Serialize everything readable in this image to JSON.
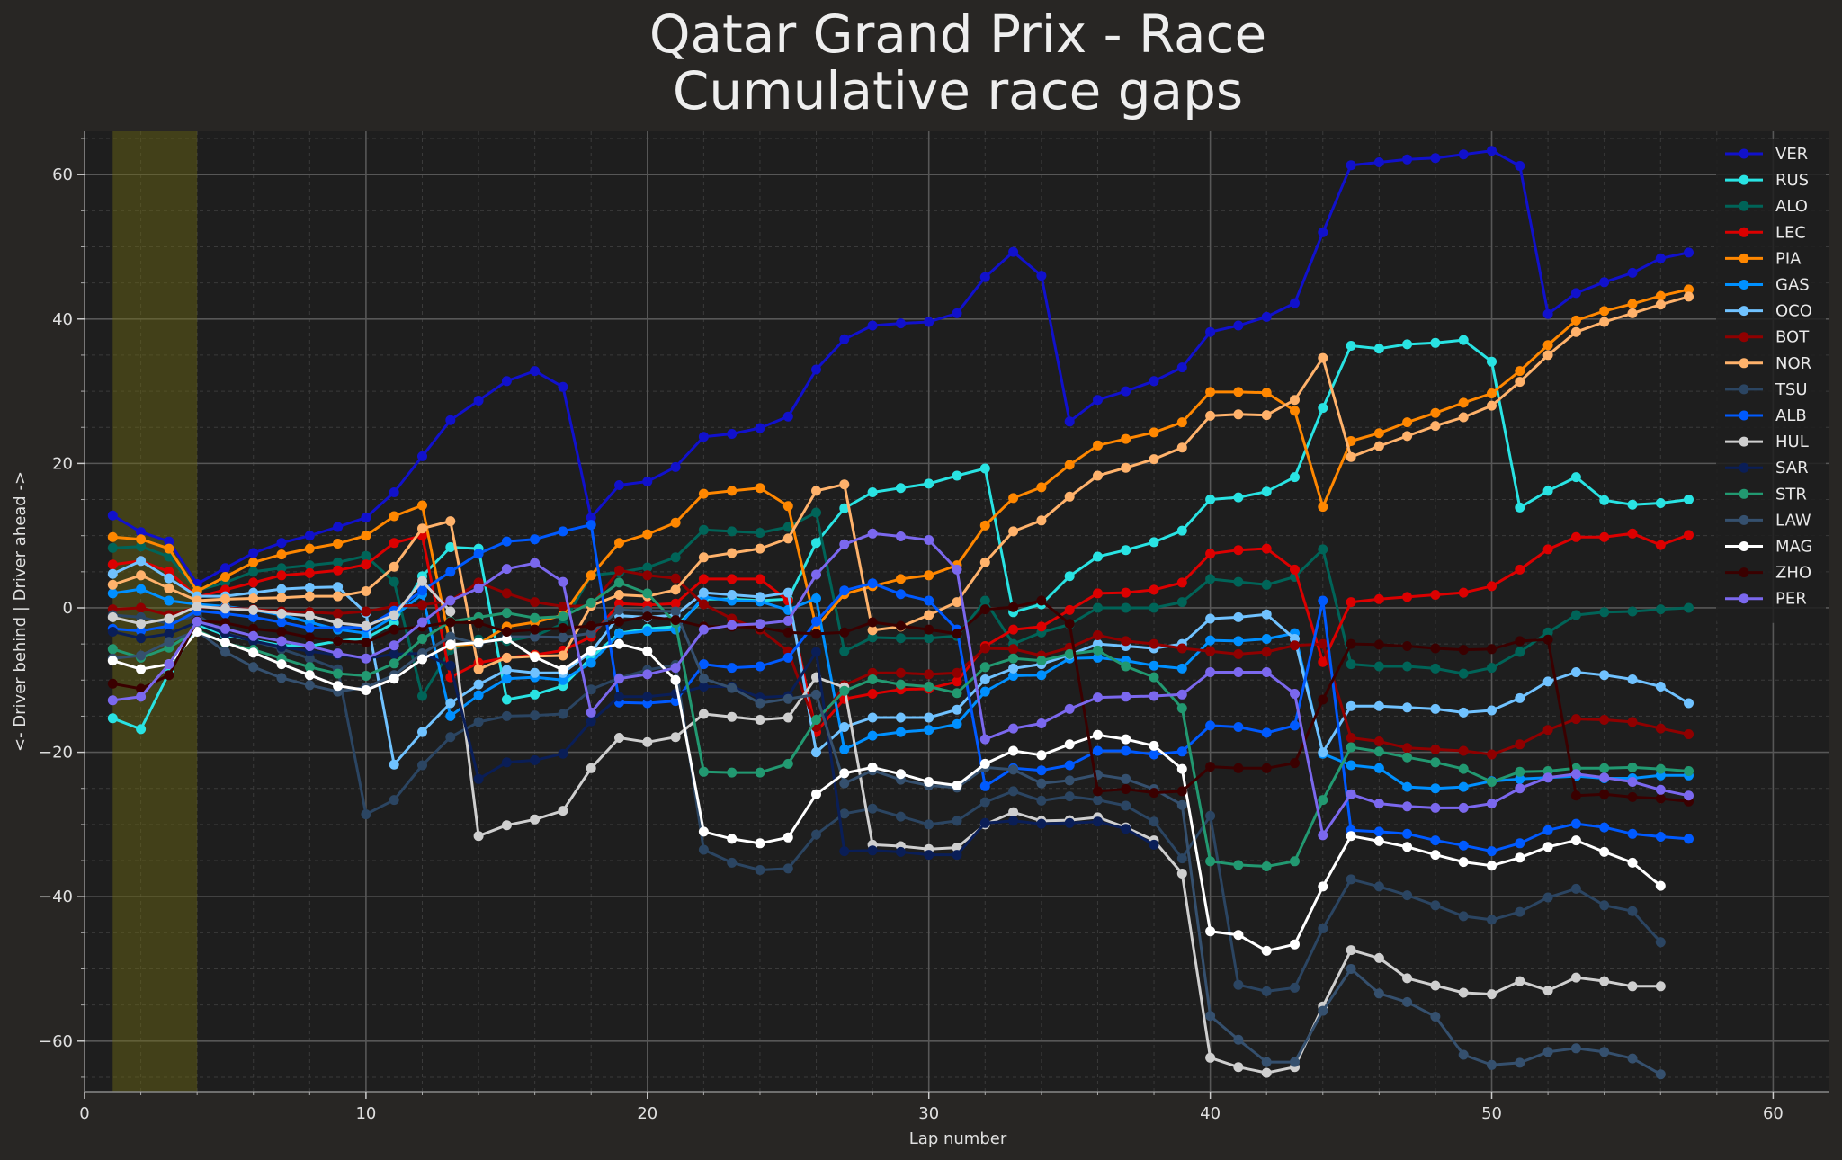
{
  "chart_data": {
    "type": "line",
    "title": "Qatar Grand Prix - Race",
    "subtitle": "Cumulative race gaps",
    "xlabel": "Lap number",
    "ylabel": "<- Driver behind | Driver ahead ->",
    "xlim": [
      0,
      62
    ],
    "ylim": [
      -67,
      66
    ],
    "x_ticks": [
      0,
      10,
      20,
      30,
      40,
      50,
      60
    ],
    "y_ticks": [
      -60,
      -40,
      -20,
      0,
      20,
      40,
      60
    ],
    "x_tick_labels": [
      "0",
      "10",
      "20",
      "30",
      "40",
      "50",
      "60"
    ],
    "y_tick_labels": [
      "−60",
      "−40",
      "−20",
      "0",
      "20",
      "40",
      "60"
    ],
    "grid": true,
    "legend_position": "top-right",
    "safety_car_laps": [
      1,
      4
    ],
    "series": [
      {
        "name": "VER",
        "color": "#1111cc",
        "x_start": 1,
        "values": [
          12.8,
          10.5,
          9.2,
          3.3,
          5.5,
          7.6,
          9.0,
          10.0,
          11.2,
          12.5,
          16.0,
          21.0,
          26.0,
          28.7,
          31.4,
          32.8,
          30.6,
          12.5,
          17.0,
          17.5,
          19.5,
          23.7,
          24.1,
          24.9,
          26.5,
          33.0,
          37.2,
          39.1,
          39.4,
          39.6,
          40.8,
          45.8,
          49.3,
          46.0,
          25.8,
          28.8,
          30.0,
          31.4,
          33.3,
          38.2,
          39.1,
          40.3,
          42.2,
          52.0,
          61.3,
          61.7,
          62.1,
          62.3,
          62.8,
          63.3,
          61.2,
          40.7,
          43.6,
          45.1,
          46.4,
          48.4,
          49.2
        ]
      },
      {
        "name": "RUS",
        "color": "#29e3e3",
        "x_start": 1,
        "values": [
          -15.3,
          -16.8,
          -9.0,
          -2.3,
          -3.8,
          -4.5,
          -5.2,
          -5.3,
          -4.6,
          -4.2,
          -2.1,
          4.4,
          8.4,
          8.2,
          -12.7,
          -12.0,
          -10.8,
          -6.9,
          -3.5,
          -2.9,
          -2.6,
          1.2,
          1.2,
          1.0,
          1.2,
          9.0,
          13.8,
          16.0,
          16.6,
          17.2,
          18.3,
          19.3,
          -0.6,
          0.5,
          4.4,
          7.1,
          8.0,
          9.1,
          10.7,
          15.0,
          15.3,
          16.1,
          18.1,
          27.7,
          36.3,
          35.9,
          36.5,
          36.7,
          37.1,
          34.1,
          13.9,
          16.2,
          18.1,
          14.9,
          14.3,
          14.5,
          15.0
        ]
      },
      {
        "name": "ALO",
        "color": "#006458",
        "x_start": 1,
        "values": [
          8.3,
          8.5,
          7.1,
          2.4,
          3.5,
          5.0,
          5.5,
          5.9,
          6.3,
          7.2,
          3.6,
          -12.2,
          -5.8,
          -4.4,
          -4.6,
          -3.9,
          -2.2,
          4.5,
          4.9,
          5.6,
          7.0,
          10.8,
          10.6,
          10.4,
          11.2,
          13.2,
          -6.0,
          -4.1,
          -4.2,
          -4.2,
          -3.9,
          1.0,
          -5.0,
          -3.4,
          -2.3,
          0.0,
          0.0,
          0.0,
          0.8,
          4.0,
          3.6,
          3.2,
          4.3,
          8.1,
          -7.8,
          -8.1,
          -8.1,
          -8.4,
          -9.1,
          -8.3,
          -6.1,
          -3.4,
          -1.0,
          -0.6,
          -0.5,
          -0.2,
          0.0
        ]
      },
      {
        "name": "LEC",
        "color": "#dc0000",
        "x_start": 1,
        "values": [
          6.0,
          6.5,
          5.0,
          1.5,
          2.5,
          3.5,
          4.5,
          4.8,
          5.2,
          6.0,
          9.0,
          10.0,
          -9.6,
          -7.6,
          -6.9,
          -6.5,
          -5.9,
          -4.0,
          0.6,
          0.4,
          0.6,
          4.0,
          4.0,
          4.0,
          1.0,
          -17.2,
          -12.6,
          -11.9,
          -11.3,
          -11.2,
          -10.2,
          -5.3,
          -3.0,
          -2.6,
          -0.3,
          2.0,
          2.1,
          2.5,
          3.5,
          7.5,
          8.0,
          8.2,
          5.3,
          -7.5,
          0.8,
          1.2,
          1.5,
          1.8,
          2.1,
          3.0,
          5.3,
          8.1,
          9.8,
          9.8,
          10.3,
          8.7,
          10.1
        ]
      },
      {
        "name": "PIA",
        "color": "#ff8700",
        "x_start": 1,
        "values": [
          9.8,
          9.5,
          8.2,
          2.3,
          4.3,
          6.3,
          7.4,
          8.2,
          8.9,
          10.0,
          12.7,
          14.2,
          -5.2,
          -5.0,
          -2.6,
          -2.0,
          -1.0,
          4.5,
          9.0,
          10.2,
          11.8,
          15.8,
          16.2,
          16.6,
          14.1,
          -2.7,
          1.9,
          3.0,
          4.0,
          4.5,
          5.9,
          11.4,
          15.2,
          16.7,
          19.8,
          22.5,
          23.4,
          24.3,
          25.7,
          29.9,
          29.9,
          29.8,
          27.3,
          14.0,
          23.1,
          24.2,
          25.7,
          27.0,
          28.4,
          29.7,
          32.8,
          36.4,
          39.8,
          41.1,
          42.1,
          43.2,
          44.1
        ]
      },
      {
        "name": "GAS",
        "color": "#0090ff",
        "x_start": 1,
        "values": [
          2.0,
          2.6,
          1.0,
          0.5,
          0.2,
          -0.3,
          -1.0,
          -2.0,
          -3.0,
          -3.5,
          -1.2,
          1.9,
          -15.0,
          -12.1,
          -9.8,
          -9.6,
          -10.0,
          -7.6,
          -3.6,
          -3.2,
          -3.0,
          1.5,
          1.0,
          0.9,
          -0.3,
          1.3,
          -19.6,
          -17.7,
          -17.2,
          -16.9,
          -16.1,
          -11.6,
          -9.4,
          -9.3,
          -7.0,
          -6.9,
          -7.3,
          -8.0,
          -8.4,
          -4.5,
          -4.6,
          -4.3,
          -3.5,
          -20.2,
          -21.8,
          -22.2,
          -24.8,
          -25.0,
          -24.8,
          -24.0,
          -23.7,
          -23.5,
          -23.3,
          -23.6,
          -23.6,
          -23.2,
          -23.2
        ]
      },
      {
        "name": "OCO",
        "color": "#70c2ff",
        "x_start": 1,
        "values": [
          4.7,
          6.5,
          4.1,
          1.6,
          1.6,
          2.1,
          2.6,
          2.8,
          2.9,
          -0.7,
          -21.7,
          -17.2,
          -13.2,
          -10.6,
          -8.6,
          -9.0,
          -9.0,
          -6.1,
          -1.1,
          -1.3,
          -1.0,
          2.1,
          1.8,
          1.5,
          2.1,
          -20.0,
          -16.5,
          -15.2,
          -15.2,
          -15.2,
          -14.1,
          -9.9,
          -8.4,
          -7.8,
          -6.5,
          -5.0,
          -5.3,
          -5.6,
          -5.0,
          -1.5,
          -1.3,
          -0.9,
          -4.3,
          -20.0,
          -13.6,
          -13.6,
          -13.8,
          -14.0,
          -14.5,
          -14.2,
          -12.5,
          -10.2,
          -8.9,
          -9.3,
          -9.9,
          -10.9,
          -13.2
        ]
      },
      {
        "name": "BOT",
        "color": "#900000",
        "x_start": 1,
        "values": [
          -0.2,
          0.0,
          -1.0,
          0.1,
          0.0,
          -0.2,
          -0.5,
          -0.6,
          -0.8,
          -0.5,
          0.2,
          0.4,
          1.0,
          3.5,
          2.0,
          0.8,
          0.2,
          0.3,
          5.2,
          4.5,
          4.1,
          0.5,
          -1.5,
          -3.0,
          -6.0,
          -16.5,
          -10.7,
          -9.0,
          -9.0,
          -9.2,
          -9.0,
          -5.6,
          -5.7,
          -6.6,
          -5.5,
          -3.8,
          -4.6,
          -5.0,
          -5.6,
          -6.0,
          -6.4,
          -6.1,
          -5.2,
          -5.0,
          -18.0,
          -18.5,
          -19.4,
          -19.6,
          -19.8,
          -20.3,
          -18.9,
          -16.9,
          -15.4,
          -15.5,
          -15.8,
          -16.7,
          -17.5
        ]
      },
      {
        "name": "NOR",
        "color": "#ffb26b",
        "x_start": 1,
        "values": [
          3.2,
          4.5,
          2.7,
          1.0,
          1.2,
          1.3,
          1.4,
          1.6,
          1.6,
          2.3,
          5.7,
          11.0,
          12.0,
          -8.5,
          -6.9,
          -6.7,
          -6.6,
          0.3,
          1.8,
          1.6,
          2.5,
          7.0,
          7.6,
          8.2,
          9.6,
          16.2,
          17.1,
          -3.1,
          -2.6,
          -1.0,
          0.8,
          6.3,
          10.6,
          12.1,
          15.4,
          18.3,
          19.4,
          20.6,
          22.2,
          26.6,
          26.8,
          26.7,
          28.8,
          34.6,
          20.9,
          22.4,
          23.8,
          25.2,
          26.4,
          28.0,
          31.3,
          35.0,
          38.2,
          39.6,
          40.8,
          42.0,
          43.1
        ]
      },
      {
        "name": "TSU",
        "color": "#2b4562",
        "x_start": 1,
        "values": [
          -1.0,
          -1.3,
          -2.2,
          -1.0,
          -3.5,
          -4.6,
          -5.7,
          -7.0,
          -8.5,
          -28.6,
          -26.6,
          -21.8,
          -17.9,
          -15.8,
          -15.0,
          -14.9,
          -14.7,
          -11.3,
          -9.7,
          -8.6,
          -7.9,
          -33.5,
          -35.3,
          -36.3,
          -36.1,
          -31.4,
          -28.5,
          -27.8,
          -28.9,
          -30.0,
          -29.5,
          -26.9,
          -25.4,
          -26.7,
          -26.1,
          -26.6,
          -27.4,
          -29.6,
          -34.7,
          -28.8,
          -52.2,
          -53.1,
          -52.6,
          -44.4,
          -37.6,
          -38.6,
          -39.8,
          -41.2,
          -42.7,
          -43.2,
          -42.1,
          -40.1,
          -38.9,
          -41.2,
          -42.0,
          -46.3
        ]
      },
      {
        "name": "ALB",
        "color": "#005aff",
        "x_start": 1,
        "values": [
          -2.9,
          -3.2,
          -2.5,
          -0.4,
          -0.8,
          -1.3,
          -2.0,
          -2.8,
          -2.7,
          -2.7,
          -0.4,
          2.4,
          5.0,
          7.5,
          9.2,
          9.5,
          10.6,
          11.5,
          -13.1,
          -13.2,
          -12.9,
          -7.8,
          -8.3,
          -8.1,
          -6.9,
          -1.9,
          2.4,
          3.4,
          1.9,
          1.0,
          -3.0,
          -24.7,
          -22.2,
          -22.5,
          -21.8,
          -19.8,
          -19.8,
          -20.3,
          -19.9,
          -16.3,
          -16.5,
          -17.3,
          -16.3,
          1.0,
          -30.8,
          -31.0,
          -31.3,
          -32.2,
          -32.9,
          -33.7,
          -32.6,
          -30.8,
          -29.9,
          -30.4,
          -31.3,
          -31.7,
          -32.0
        ]
      },
      {
        "name": "HUL",
        "color": "#cfcfcf",
        "x_start": 1,
        "values": [
          -1.3,
          -2.2,
          -1.5,
          0.2,
          -0.1,
          -0.3,
          -0.8,
          -1.1,
          -2.1,
          -2.5,
          -1.0,
          3.7,
          -0.5,
          -31.6,
          -30.1,
          -29.3,
          -28.1,
          -22.2,
          -18.0,
          -18.6,
          -17.9,
          -14.7,
          -15.1,
          -15.5,
          -15.2,
          -9.6,
          -11.0,
          -32.8,
          -33.0,
          -33.4,
          -33.2,
          -30.0,
          -28.3,
          -29.5,
          -29.4,
          -29.0,
          -30.4,
          -32.2,
          -36.8,
          -62.3,
          -63.6,
          -64.4,
          -63.6,
          -55.2,
          -47.4,
          -48.5,
          -51.3,
          -52.3,
          -53.3,
          -53.5,
          -51.7,
          -53.0,
          -51.2,
          -51.7,
          -52.4,
          -52.4
        ]
      },
      {
        "name": "SAR",
        "color": "#0a1e57",
        "x_start": 1,
        "values": [
          -3.3,
          -4.2,
          -3.6,
          -2.0,
          -3.6,
          -4.6,
          -5.4,
          -6.0,
          -6.5,
          -7.0,
          -6.4,
          -6.3,
          -8.0,
          -23.7,
          -21.4,
          -21.1,
          -20.2,
          -15.7,
          -12.3,
          -12.3,
          -11.9,
          -10.9,
          -10.9,
          -12.4,
          -12.2,
          -6.1,
          -33.7,
          -33.6,
          -33.8,
          -34.2,
          -34.2,
          -29.8,
          -29.5,
          -29.9,
          -29.8,
          -29.6,
          -30.6,
          -32.8
        ]
      },
      {
        "name": "STR",
        "color": "#229971",
        "x_start": 1,
        "values": [
          -5.7,
          -6.9,
          -5.5,
          -3.1,
          -4.9,
          -5.8,
          -7.0,
          -8.2,
          -9.1,
          -9.4,
          -7.7,
          -4.3,
          -1.9,
          -1.3,
          -0.7,
          -1.4,
          -1.2,
          0.7,
          3.5,
          2.0,
          -2.1,
          -22.7,
          -22.8,
          -22.8,
          -21.6,
          -15.5,
          -11.5,
          -9.9,
          -10.6,
          -10.9,
          -11.8,
          -8.2,
          -7.0,
          -7.3,
          -6.4,
          -5.9,
          -8.1,
          -9.6,
          -13.9,
          -35.1,
          -35.6,
          -35.8,
          -35.1,
          -26.6,
          -19.3,
          -19.9,
          -20.7,
          -21.4,
          -22.3,
          -24.1,
          -22.7,
          -22.6,
          -22.2,
          -22.2,
          -22.1,
          -22.3,
          -22.6
        ]
      },
      {
        "name": "LAW",
        "color": "#35506e",
        "x_start": 1,
        "values": [
          -7.0,
          -6.6,
          -4.7,
          -3.2,
          -6.1,
          -8.2,
          -9.7,
          -10.7,
          -11.6,
          -11.0,
          -9.3,
          -6.3,
          -4.0,
          -5.0,
          -4.0,
          -4.0,
          -4.1,
          -3.5,
          -0.3,
          -0.4,
          -0.5,
          -9.8,
          -11.1,
          -13.2,
          -12.6,
          -12.0,
          -24.3,
          -22.5,
          -23.8,
          -24.6,
          -24.9,
          -22.1,
          -22.4,
          -24.3,
          -23.9,
          -23.1,
          -23.7,
          -25.1,
          -27.3,
          -56.5,
          -59.8,
          -62.9,
          -62.9,
          -55.8,
          -50.0,
          -53.4,
          -54.6,
          -56.6,
          -61.9,
          -63.3,
          -63.0,
          -61.5,
          -61.0,
          -61.5,
          -62.4,
          -64.6
        ]
      },
      {
        "name": "MAG",
        "color": "#ffffff",
        "x_start": 1,
        "values": [
          -7.3,
          -8.5,
          -7.8,
          -3.3,
          -4.8,
          -6.2,
          -7.8,
          -9.3,
          -10.8,
          -11.4,
          -9.8,
          -7.1,
          -5.1,
          -4.8,
          -4.3,
          -6.8,
          -8.6,
          -5.9,
          -5.0,
          -6.0,
          -10.0,
          -31.0,
          -32.0,
          -32.6,
          -31.8,
          -25.8,
          -22.9,
          -22.1,
          -23.0,
          -24.1,
          -24.6,
          -21.6,
          -19.8,
          -20.4,
          -18.9,
          -17.6,
          -18.2,
          -19.1,
          -22.3,
          -44.8,
          -45.3,
          -47.5,
          -46.6,
          -38.6,
          -31.6,
          -32.3,
          -33.1,
          -34.2,
          -35.2,
          -35.7,
          -34.6,
          -33.1,
          -32.2,
          -33.8,
          -35.3,
          -38.5
        ]
      },
      {
        "name": "ZHO",
        "color": "#3a0000",
        "x_start": 1,
        "values": [
          -10.5,
          -11.2,
          -9.3,
          -1.8,
          -2.1,
          -2.9,
          -3.3,
          -4.1,
          -4.6,
          -4.8,
          -3.0,
          -2.6,
          -2.0,
          -2.1,
          -3.3,
          -3.0,
          -2.8,
          -2.5,
          -1.9,
          -1.2,
          -1.7,
          -2.6,
          -2.6,
          -2.7,
          -3.4,
          -3.6,
          -3.4,
          -2.0,
          -2.5,
          -3.0,
          -3.6,
          -0.2,
          0.1,
          1.0,
          -2.2,
          -25.4,
          -25.1,
          -25.6,
          -25.4,
          -22.0,
          -22.2,
          -22.2,
          -21.5,
          -12.7,
          -5.0,
          -5.1,
          -5.3,
          -5.6,
          -5.8,
          -5.7,
          -4.6,
          -4.4,
          -26.0,
          -25.8,
          -26.2,
          -26.4,
          -26.8
        ]
      },
      {
        "name": "PER",
        "color": "#7b68ee",
        "x_start": 1,
        "values": [
          -12.8,
          -12.3,
          -7.8,
          -1.9,
          -2.9,
          -3.9,
          -4.6,
          -5.3,
          -6.3,
          -7.0,
          -5.2,
          -2.0,
          1.0,
          2.7,
          5.4,
          6.2,
          3.6,
          -14.5,
          -9.8,
          -9.2,
          -8.3,
          -3.0,
          -2.4,
          -2.2,
          -1.8,
          4.6,
          8.8,
          10.3,
          9.9,
          9.4,
          5.3,
          -18.2,
          -16.7,
          -16.0,
          -14.0,
          -12.4,
          -12.3,
          -12.2,
          -12.0,
          -8.9,
          -8.9,
          -8.9,
          -11.9,
          -31.5,
          -25.8,
          -27.1,
          -27.5,
          -27.7,
          -27.7,
          -27.1,
          -25.0,
          -23.5,
          -23.0,
          -23.5,
          -24.1,
          -25.2,
          -26.0
        ]
      }
    ]
  }
}
